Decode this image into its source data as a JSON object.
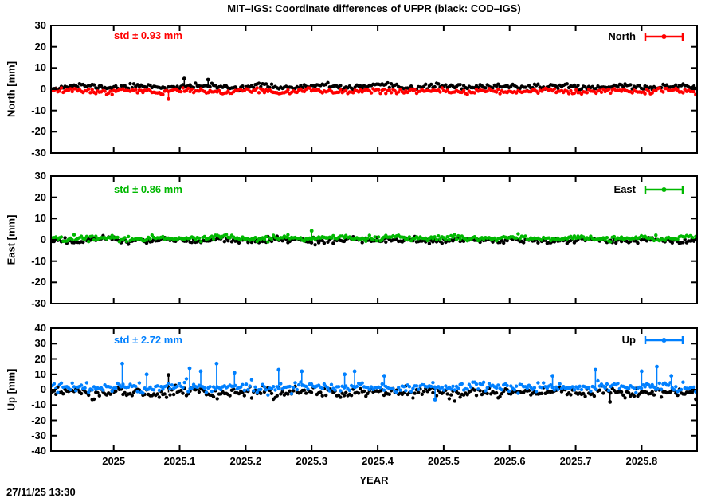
{
  "timestamp": "27/11/25 13:30",
  "chart_data": {
    "type": "scatter",
    "title": "MIT–IGS: Coordinate differences of UFPR (black: COD–IGS)",
    "xlabel": "YEAR",
    "grid": false,
    "legend_position": "top-right-inside",
    "x_range": [
      2024.905,
      2025.884
    ],
    "x_ticks": [
      "2025",
      "2025.1",
      "2025.2",
      "2025.3",
      "2025.4",
      "2025.5",
      "2025.6",
      "2025.7",
      "2025.8"
    ],
    "x_tick_values": [
      2025.0,
      2025.1,
      2025.2,
      2025.3,
      2025.4,
      2025.5,
      2025.6,
      2025.7,
      2025.8
    ],
    "sampling": "daily solutions, ~356 points per series",
    "colors": {
      "north": "#ff0000",
      "east": "#00b800",
      "up": "#0080ff",
      "black_reference": "#000000"
    },
    "panels": [
      {
        "id": "north",
        "ylabel": "North [mm]",
        "ylim": [
          -30,
          30
        ],
        "y_ticks": [
          "30",
          "20",
          "10",
          "0",
          "-10",
          "-20",
          "-30"
        ],
        "y_tick_values": [
          30,
          20,
          10,
          0,
          -10,
          -20,
          -30
        ],
        "std_label": "std ± 0.93 mm",
        "std_value_mm": 0.93,
        "legend_label": "North",
        "series": [
          {
            "name": "COD-IGS North",
            "color": "#000000",
            "mean_mm": 1.2,
            "sin_amp_mm": 0.5,
            "noise_sd_mm": 0.55,
            "band_mm": [
              -0.8,
              3.6
            ],
            "seed": 11,
            "outliers": [
              [
                2025.107,
                5.0
              ],
              [
                2025.143,
                4.5
              ]
            ]
          },
          {
            "name": "MIT-IGS North",
            "color": "#ff0000",
            "mean_mm": -0.9,
            "sin_amp_mm": 0.45,
            "noise_sd_mm": 0.55,
            "band_mm": [
              -3.3,
              0.6
            ],
            "seed": 12,
            "outliers": [
              [
                2025.083,
                -4.6
              ]
            ]
          }
        ]
      },
      {
        "id": "east",
        "ylabel": "East [mm]",
        "ylim": [
          -30,
          30
        ],
        "y_ticks": [
          "30",
          "20",
          "10",
          "0",
          "-10",
          "-20",
          "-30"
        ],
        "y_tick_values": [
          30,
          20,
          10,
          0,
          -10,
          -20,
          -30
        ],
        "std_label": "std ± 0.86 mm",
        "std_value_mm": 0.86,
        "legend_label": "East",
        "series": [
          {
            "name": "COD-IGS East",
            "color": "#000000",
            "mean_mm": -0.2,
            "sin_amp_mm": 0.4,
            "noise_sd_mm": 0.7,
            "band_mm": [
              -2.8,
              2.2
            ],
            "seed": 21,
            "outliers": []
          },
          {
            "name": "MIT-IGS East",
            "color": "#00b800",
            "mean_mm": 0.8,
            "sin_amp_mm": 0.4,
            "noise_sd_mm": 0.6,
            "band_mm": [
              -1.3,
              3.4
            ],
            "seed": 22,
            "outliers": [
              [
                2025.3,
                4.2
              ]
            ]
          }
        ]
      },
      {
        "id": "up",
        "ylabel": "Up [mm]",
        "ylim": [
          -40,
          40
        ],
        "y_ticks": [
          "40",
          "30",
          "20",
          "10",
          "0",
          "-10",
          "-20",
          "-30",
          "-40"
        ],
        "y_tick_values": [
          40,
          30,
          20,
          10,
          0,
          -10,
          -20,
          -30,
          -40
        ],
        "std_label": "std ± 2.72 mm",
        "std_value_mm": 2.72,
        "legend_label": "Up",
        "series": [
          {
            "name": "COD-IGS Up",
            "color": "#000000",
            "mean_mm": -1.8,
            "sin_amp_mm": 0.9,
            "noise_sd_mm": 1.6,
            "band_mm": [
              -7.5,
              3.5
            ],
            "seed": 31,
            "outliers": [
              [
                2025.083,
                9.5
              ],
              [
                2025.752,
                -8.0
              ]
            ]
          },
          {
            "name": "MIT-IGS Up",
            "color": "#0080ff",
            "mean_mm": 1.6,
            "sin_amp_mm": 0.8,
            "noise_sd_mm": 1.5,
            "band_mm": [
              -4.5,
              7.0
            ],
            "seed": 32,
            "outliers": [
              [
                2025.013,
                17
              ],
              [
                2025.05,
                10
              ],
              [
                2025.115,
                14
              ],
              [
                2025.132,
                12
              ],
              [
                2025.156,
                17
              ],
              [
                2025.183,
                11
              ],
              [
                2025.25,
                13
              ],
              [
                2025.285,
                12
              ],
              [
                2025.35,
                10
              ],
              [
                2025.365,
                12
              ],
              [
                2025.41,
                9
              ],
              [
                2025.487,
                -6.5
              ],
              [
                2025.665,
                9
              ],
              [
                2025.73,
                13
              ],
              [
                2025.8,
                12
              ],
              [
                2025.823,
                15
              ],
              [
                2025.845,
                9
              ]
            ]
          }
        ]
      }
    ]
  }
}
